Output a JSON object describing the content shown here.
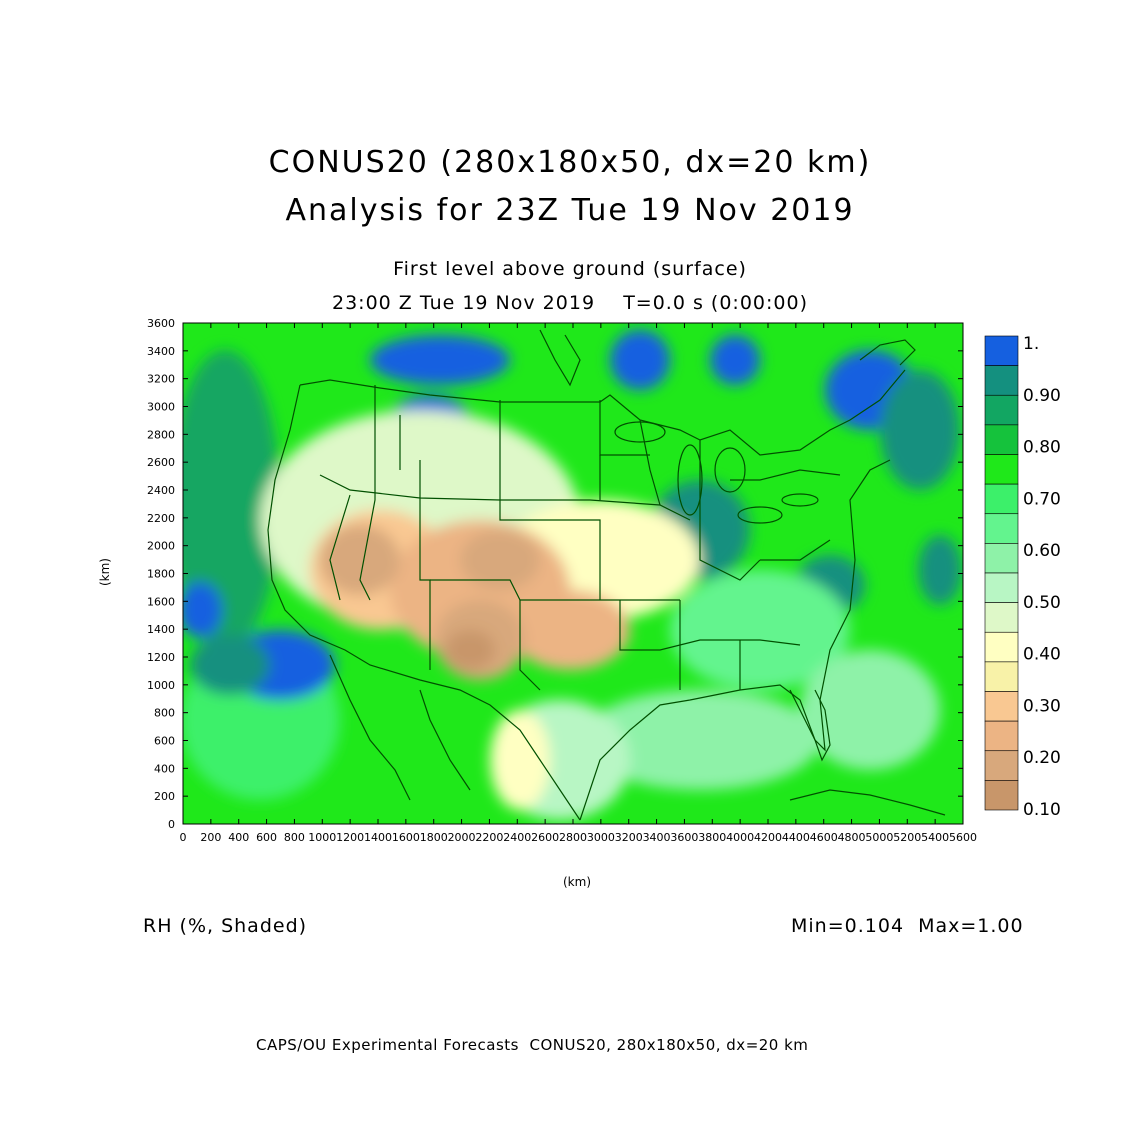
{
  "header": {
    "title_line1": "CONUS20 (280x180x50, dx=20 km)",
    "title_line2": "Analysis for 23Z Tue 19 Nov 2019",
    "level": "First level above ground (surface)",
    "time": "23:00 Z Tue 19 Nov 2019    T=0.0 s (0:00:00)"
  },
  "axes": {
    "x_unit": "(km)",
    "y_unit": "(km)",
    "x_ticks": [
      "0",
      "200",
      "400",
      "600",
      "800",
      "1000",
      "1200",
      "1400",
      "1600",
      "1800",
      "2000",
      "2200",
      "2400",
      "2600",
      "2800",
      "3000",
      "3200",
      "3400",
      "3600",
      "3800",
      "4000",
      "4200",
      "4400",
      "4600",
      "4800",
      "5000",
      "5200",
      "5400",
      "5600"
    ],
    "y_ticks": [
      "0",
      "200",
      "400",
      "600",
      "800",
      "1000",
      "1200",
      "1400",
      "1600",
      "1800",
      "2000",
      "2200",
      "2400",
      "2600",
      "2800",
      "3000",
      "3200",
      "3400",
      "3600"
    ],
    "x_range": [
      0,
      5600
    ],
    "y_range": [
      0,
      3600
    ]
  },
  "colorbar": {
    "labels": [
      "1.",
      "0.90",
      "0.80",
      "0.70",
      "0.60",
      "0.50",
      "0.40",
      "0.30",
      "0.20",
      "0.10"
    ],
    "colors": [
      "#1560e0",
      "#14907f",
      "#12a662",
      "#15c23c",
      "#1fe81a",
      "#3cf06a",
      "#63f48e",
      "#8ef2a8",
      "#b8f6c4",
      "#def8c8",
      "#ffffc2",
      "#f8f2a8",
      "#f9c892",
      "#ecb484",
      "#d8a87c",
      "#c8966a"
    ]
  },
  "footer": {
    "variable": "RH (%, Shaded)",
    "minmax": "Min=0.104  Max=1.00",
    "credit": "CAPS/OU Experimental Forecasts  CONUS20, 280x180x50, dx=20 km"
  }
}
